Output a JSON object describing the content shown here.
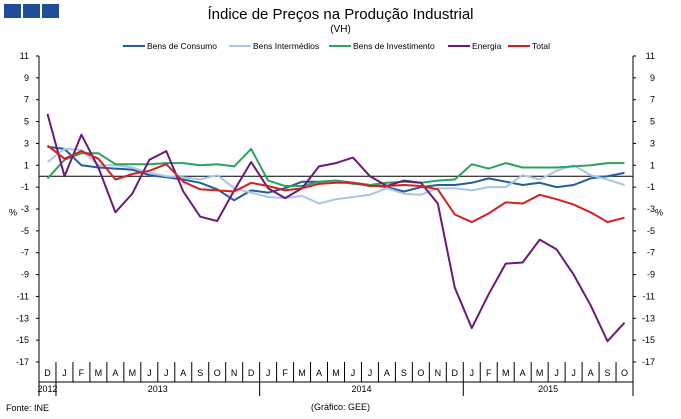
{
  "header": {
    "title": "Índice de Preços na Produção Industrial",
    "subtitle": "(VH)"
  },
  "footer": {
    "source": "Fonte: INE",
    "credit": "(Gráfico: GEE)"
  },
  "colors": {
    "logo": "#1f4e99"
  },
  "chart_data": {
    "type": "line",
    "title": "Índice de Preços na Produção Industrial",
    "subtitle": "(VH)",
    "ylabel": "%",
    "ylabel_right": "%",
    "ylim": [
      -17,
      11
    ],
    "yticks": [
      11,
      9,
      7,
      5,
      3,
      1,
      -1,
      -3,
      -5,
      -7,
      -9,
      -11,
      -13,
      -15,
      -17
    ],
    "legend_position": "top",
    "grid": false,
    "categories": [
      "D",
      "J",
      "F",
      "M",
      "A",
      "M",
      "J",
      "J",
      "A",
      "S",
      "O",
      "N",
      "D",
      "J",
      "F",
      "M",
      "A",
      "M",
      "J",
      "J",
      "A",
      "S",
      "O",
      "N",
      "D",
      "J",
      "F",
      "M",
      "A",
      "M",
      "J",
      "J",
      "A",
      "S",
      "O"
    ],
    "year_labels": [
      {
        "label": "2012",
        "start": 0,
        "end": 0
      },
      {
        "label": "2013",
        "start": 1,
        "end": 12
      },
      {
        "label": "2014",
        "start": 13,
        "end": 24
      },
      {
        "label": "2015",
        "start": 25,
        "end": 34
      }
    ],
    "series": [
      {
        "name": "Bens de Consumo",
        "color": "#1f5fa0",
        "values": [
          2.7,
          2.5,
          1.0,
          0.8,
          0.7,
          0.6,
          0.1,
          -0.1,
          -0.3,
          -0.6,
          -1.2,
          -2.2,
          -1.3,
          -1.5,
          -1.1,
          -0.5,
          -0.5,
          -0.4,
          -0.6,
          -0.8,
          -1.0,
          -1.4,
          -1.0,
          -0.8,
          -0.8,
          -0.6,
          -0.2,
          -0.5,
          -0.8,
          -0.6,
          -1.0,
          -0.8,
          -0.2,
          0.0,
          0.3
        ]
      },
      {
        "name": "Bens Intermédios",
        "color": "#a9c6e3",
        "values": [
          1.3,
          2.5,
          2.4,
          1.0,
          1.0,
          0.8,
          0.3,
          0.0,
          -0.1,
          -0.3,
          0.1,
          -1.1,
          -1.5,
          -1.9,
          -2.0,
          -1.8,
          -2.5,
          -2.1,
          -1.9,
          -1.7,
          -1.1,
          -1.6,
          -1.7,
          -1.1,
          -1.1,
          -1.3,
          -1.0,
          -1.0,
          0.1,
          -0.3,
          0.5,
          1.0,
          0.1,
          -0.3,
          -0.8
        ]
      },
      {
        "name": "Bens de Investimento",
        "color": "#2ca25f",
        "values": [
          -0.2,
          1.5,
          2.1,
          2.1,
          1.1,
          1.1,
          1.1,
          1.2,
          1.2,
          1.0,
          1.1,
          0.9,
          2.5,
          -0.4,
          -0.9,
          -0.9,
          -0.5,
          -0.4,
          -0.7,
          -0.8,
          -0.6,
          -0.5,
          -0.6,
          -0.4,
          -0.3,
          1.1,
          0.7,
          1.2,
          0.8,
          0.8,
          0.8,
          0.9,
          1.0,
          1.2,
          1.2
        ]
      },
      {
        "name": "Energia",
        "color": "#6a1a7a",
        "values": [
          5.7,
          0.0,
          3.8,
          0.8,
          -3.3,
          -1.6,
          1.5,
          2.3,
          -1.4,
          -3.7,
          -4.1,
          -1.3,
          1.3,
          -1.1,
          -2.0,
          -1.1,
          0.9,
          1.2,
          1.7,
          0.0,
          -0.9,
          -0.4,
          -0.6,
          -2.5,
          -10.2,
          -13.9,
          -10.8,
          -8.0,
          -7.9,
          -5.8,
          -6.7,
          -9.0,
          -11.8,
          -15.1,
          -13.4
        ]
      },
      {
        "name": "Total",
        "color": "#d42020",
        "values": [
          2.8,
          1.6,
          2.3,
          1.6,
          -0.3,
          0.2,
          0.5,
          1.1,
          -0.5,
          -1.2,
          -1.3,
          -1.4,
          -0.6,
          -0.9,
          -1.3,
          -1.1,
          -0.7,
          -0.6,
          -0.6,
          -0.9,
          -0.9,
          -0.8,
          -0.9,
          -1.2,
          -3.5,
          -4.2,
          -3.4,
          -2.4,
          -2.5,
          -1.7,
          -2.1,
          -2.6,
          -3.3,
          -4.2,
          -3.8
        ]
      }
    ]
  }
}
